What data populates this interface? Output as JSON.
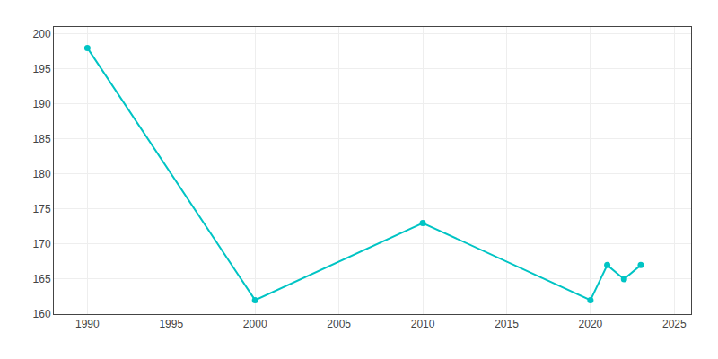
{
  "chart_data": {
    "type": "line",
    "x": [
      1990,
      2000,
      2010,
      2020,
      2021,
      2022,
      2023
    ],
    "values": [
      198,
      162,
      173,
      162,
      167,
      165,
      167
    ],
    "color": "#00c4c4",
    "marker": "circle",
    "line_style": "solid",
    "xlim": [
      1988,
      2026
    ],
    "ylim": [
      160,
      201
    ],
    "xticks": [
      1990,
      1995,
      2000,
      2005,
      2010,
      2015,
      2020,
      2025
    ],
    "yticks": [
      160,
      165,
      170,
      175,
      180,
      185,
      190,
      195,
      200
    ],
    "grid": true
  }
}
